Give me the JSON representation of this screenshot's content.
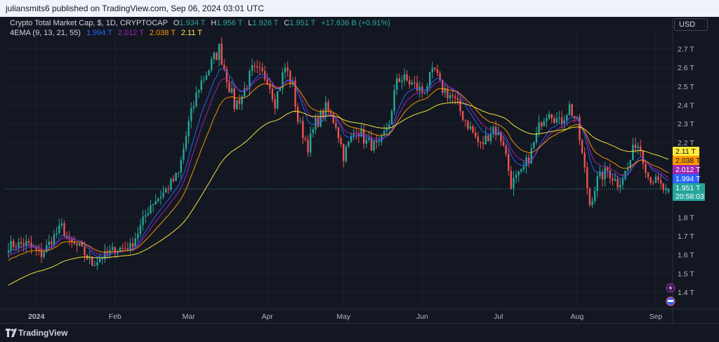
{
  "publish_line": "juliansmits6 published on TradingView.com, Sep 06, 2024 03:01 UTC",
  "footer_brand": "TradingView",
  "currency_button": "USD",
  "colors": {
    "bull": "#26a69a",
    "bear": "#ef5350",
    "ema9": "#2962ff",
    "ema13": "#9c27b0",
    "ema21": "#ff9800",
    "ema55": "#ffeb3b",
    "background": "#131722"
  },
  "legend": {
    "symbol": "Crypto Total Market Cap, $, 1D, CRYPTOCAP",
    "o_label": "O",
    "o_value": "1.934 T",
    "h_label": "H",
    "h_value": "1.956 T",
    "l_label": "L",
    "l_value": "1.926 T",
    "c_label": "C",
    "c_value": "1.951 T",
    "change": "+17.636 B (+0.91%)",
    "indicator": "4EMA (9, 13, 21, 55)",
    "ema9_value": "1.994 T",
    "ema13_value": "2.012 T",
    "ema21_value": "2.038 T",
    "ema55_value": "2.11 T"
  },
  "chart_data": {
    "type": "candlestick",
    "x_axis": {
      "labels": [
        {
          "text": "2024",
          "date": "2024-01-01"
        },
        {
          "text": "Feb",
          "date": "2024-02-01"
        },
        {
          "text": "Mar",
          "date": "2024-03-01"
        },
        {
          "text": "Apr",
          "date": "2024-04-01"
        },
        {
          "text": "May",
          "date": "2024-05-01"
        },
        {
          "text": "Jun",
          "date": "2024-06-01"
        },
        {
          "text": "Jul",
          "date": "2024-07-01"
        },
        {
          "text": "Aug",
          "date": "2024-08-01"
        },
        {
          "text": "Sep",
          "date": "2024-09-01"
        }
      ],
      "range": [
        "2023-12-21",
        "2024-09-06"
      ]
    },
    "y_axis": {
      "unit": "T",
      "ticks": [
        "1.4 T",
        "1.5 T",
        "1.6 T",
        "1.7 T",
        "1.8 T",
        "2.2 T",
        "2.3 T",
        "2.4 T",
        "2.5 T",
        "2.6 T",
        "2.7 T"
      ],
      "range": [
        1.3,
        2.8
      ],
      "scale": "linear"
    },
    "anchors": [
      {
        "date": "2023-12-21",
        "value": 1.65
      },
      {
        "date": "2023-12-28",
        "value": 1.66
      },
      {
        "date": "2024-01-03",
        "value": 1.6
      },
      {
        "date": "2024-01-08",
        "value": 1.7
      },
      {
        "date": "2024-01-11",
        "value": 1.75
      },
      {
        "date": "2024-01-14",
        "value": 1.66
      },
      {
        "date": "2024-01-18",
        "value": 1.64
      },
      {
        "date": "2024-01-23",
        "value": 1.55
      },
      {
        "date": "2024-01-26",
        "value": 1.58
      },
      {
        "date": "2024-02-01",
        "value": 1.63
      },
      {
        "date": "2024-02-07",
        "value": 1.64
      },
      {
        "date": "2024-02-10",
        "value": 1.72
      },
      {
        "date": "2024-02-15",
        "value": 1.87
      },
      {
        "date": "2024-02-20",
        "value": 1.93
      },
      {
        "date": "2024-02-26",
        "value": 2.03
      },
      {
        "date": "2024-03-01",
        "value": 2.3
      },
      {
        "date": "2024-03-05",
        "value": 2.5
      },
      {
        "date": "2024-03-10",
        "value": 2.62
      },
      {
        "date": "2024-03-13",
        "value": 2.7
      },
      {
        "date": "2024-03-16",
        "value": 2.55
      },
      {
        "date": "2024-03-19",
        "value": 2.4
      },
      {
        "date": "2024-03-22",
        "value": 2.45
      },
      {
        "date": "2024-03-26",
        "value": 2.58
      },
      {
        "date": "2024-04-01",
        "value": 2.55
      },
      {
        "date": "2024-04-04",
        "value": 2.42
      },
      {
        "date": "2024-04-08",
        "value": 2.6
      },
      {
        "date": "2024-04-11",
        "value": 2.5
      },
      {
        "date": "2024-04-13",
        "value": 2.32
      },
      {
        "date": "2024-04-17",
        "value": 2.18
      },
      {
        "date": "2024-04-20",
        "value": 2.3
      },
      {
        "date": "2024-04-24",
        "value": 2.38
      },
      {
        "date": "2024-04-28",
        "value": 2.3
      },
      {
        "date": "2024-05-01",
        "value": 2.13
      },
      {
        "date": "2024-05-06",
        "value": 2.28
      },
      {
        "date": "2024-05-10",
        "value": 2.2
      },
      {
        "date": "2024-05-15",
        "value": 2.17
      },
      {
        "date": "2024-05-20",
        "value": 2.35
      },
      {
        "date": "2024-05-22",
        "value": 2.55
      },
      {
        "date": "2024-05-27",
        "value": 2.52
      },
      {
        "date": "2024-06-01",
        "value": 2.47
      },
      {
        "date": "2024-06-06",
        "value": 2.58
      },
      {
        "date": "2024-06-08",
        "value": 2.5
      },
      {
        "date": "2024-06-13",
        "value": 2.44
      },
      {
        "date": "2024-06-18",
        "value": 2.32
      },
      {
        "date": "2024-06-24",
        "value": 2.18
      },
      {
        "date": "2024-06-29",
        "value": 2.28
      },
      {
        "date": "2024-07-03",
        "value": 2.2
      },
      {
        "date": "2024-07-06",
        "value": 1.98
      },
      {
        "date": "2024-07-10",
        "value": 2.03
      },
      {
        "date": "2024-07-14",
        "value": 2.15
      },
      {
        "date": "2024-07-18",
        "value": 2.32
      },
      {
        "date": "2024-07-21",
        "value": 2.38
      },
      {
        "date": "2024-07-25",
        "value": 2.3
      },
      {
        "date": "2024-07-29",
        "value": 2.39
      },
      {
        "date": "2024-08-01",
        "value": 2.3
      },
      {
        "date": "2024-08-04",
        "value": 2.05
      },
      {
        "date": "2024-08-06",
        "value": 1.87
      },
      {
        "date": "2024-08-09",
        "value": 2.0
      },
      {
        "date": "2024-08-13",
        "value": 2.05
      },
      {
        "date": "2024-08-17",
        "value": 1.98
      },
      {
        "date": "2024-08-21",
        "value": 2.06
      },
      {
        "date": "2024-08-24",
        "value": 2.2
      },
      {
        "date": "2024-08-26",
        "value": 2.17
      },
      {
        "date": "2024-08-29",
        "value": 2.02
      },
      {
        "date": "2024-09-02",
        "value": 1.98
      },
      {
        "date": "2024-09-05",
        "value": 1.934
      },
      {
        "date": "2024-09-06",
        "value": 1.951
      }
    ],
    "ema_lengths": [
      9,
      13,
      21,
      55
    ],
    "last_values": {
      "ema9": 1.994,
      "ema13": 2.012,
      "ema21": 2.038,
      "ema55": 2.11,
      "close": 1.951
    },
    "last_candle": {
      "open": 1.934,
      "high": 1.956,
      "low": 1.926,
      "close": 1.951
    },
    "countdown": "20:58:03",
    "labels": {
      "ema55": "2.11 T",
      "ema21": "2.038 T",
      "ema13": "2.012 T",
      "ema9": "1.994 T",
      "close": "1.951 T"
    }
  }
}
